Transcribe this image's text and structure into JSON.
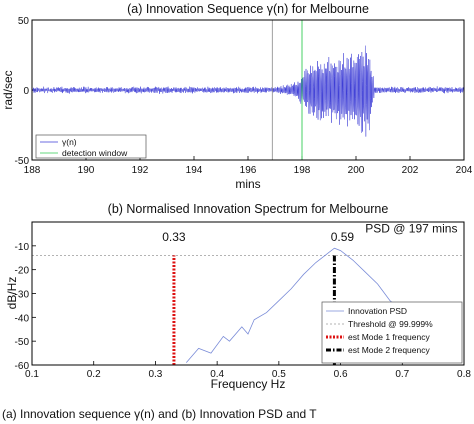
{
  "chart_data": [
    {
      "type": "line",
      "title": "(a) Innovation Sequence γ(n) for Melbourne",
      "xlabel": "mins",
      "ylabel": "rad/sec",
      "xlim": [
        188,
        204
      ],
      "ylim": [
        -50,
        50
      ],
      "xticks": [
        "188",
        "190",
        "192",
        "194",
        "196",
        "198",
        "200",
        "202",
        "204"
      ],
      "yticks": [
        "50",
        "0",
        "-50"
      ],
      "grid": false,
      "legend_position": "bottom-left",
      "series": [
        {
          "name": "γ(n)",
          "color": "#3b3bd6",
          "description_points": {
            "x": [
              188,
              197,
              197.7,
              198.4,
              199.0,
              199.6,
              200.0,
              200.3,
              200.5,
              200.7,
              204
            ],
            "amplitude": [
              2,
              2,
              5,
              22,
              25,
              27,
              30,
              35,
              30,
              2,
              2
            ]
          }
        },
        {
          "name": "detection window",
          "color": "#33cc55",
          "x": [
            196.9,
            198
          ]
        }
      ]
    },
    {
      "type": "line",
      "title": "(b) Normalised Innovation Spectrum for Melbourne",
      "xlabel": "Frequency Hz",
      "ylabel": "dB/Hz",
      "xlim": [
        0.1,
        0.8
      ],
      "ylim": [
        -60,
        0
      ],
      "xticks": [
        "0.1",
        "0.2",
        "0.3",
        "0.4",
        "0.5",
        "0.6",
        "0.7",
        "0.8"
      ],
      "yticks": [
        "-10",
        "-20",
        "-30",
        "-40",
        "-50",
        "-60"
      ],
      "grid": false,
      "legend_position": "bottom-right",
      "annotations": [
        "0.33",
        "0.59",
        "PSD @ 197 mins"
      ],
      "series": [
        {
          "name": "Innovation PSD",
          "color": "#7a8cd8",
          "x": [
            0.35,
            0.37,
            0.39,
            0.41,
            0.42,
            0.44,
            0.45,
            0.46,
            0.48,
            0.5,
            0.52,
            0.54,
            0.56,
            0.58,
            0.59,
            0.6,
            0.62,
            0.64,
            0.66,
            0.68,
            0.7,
            0.72,
            0.74,
            0.76,
            0.78
          ],
          "y": [
            -59,
            -53,
            -55,
            -48,
            -50,
            -44,
            -47,
            -41,
            -38,
            -33,
            -28,
            -22,
            -17,
            -13,
            -11,
            -12,
            -16,
            -21,
            -26,
            -33,
            -37,
            -42,
            -45,
            -47,
            -48
          ]
        },
        {
          "name": "Threshold @ 99.999%",
          "color": "#9a9a9a",
          "x": [
            0.1,
            0.8
          ],
          "y": [
            -14,
            -14
          ]
        },
        {
          "name": "est Mode 1 frequency",
          "color": "#dd1111",
          "x": [
            0.33,
            0.33
          ],
          "y": [
            -60,
            -14
          ]
        },
        {
          "name": "est Mode 2 frequency",
          "color": "#000000",
          "x": [
            0.59,
            0.59
          ],
          "y": [
            -60,
            -14
          ]
        }
      ]
    }
  ],
  "caption": "(a) Innovation sequence γ(n) and (b) Innovation PSD and T"
}
